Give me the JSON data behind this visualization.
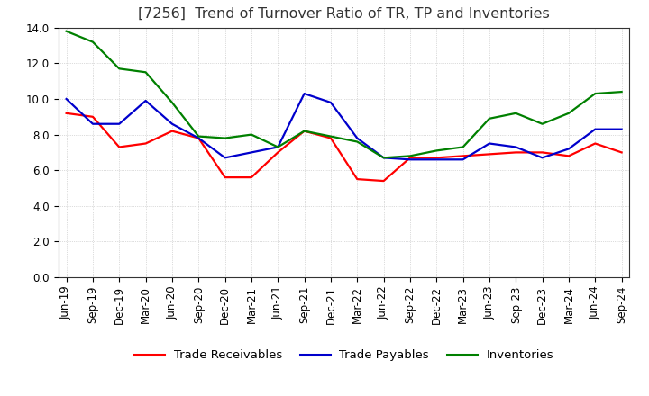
{
  "title": "[7256]  Trend of Turnover Ratio of TR, TP and Inventories",
  "ylim": [
    0.0,
    14.0
  ],
  "yticks": [
    0.0,
    2.0,
    4.0,
    6.0,
    8.0,
    10.0,
    12.0,
    14.0
  ],
  "x_labels": [
    "Jun-19",
    "Sep-19",
    "Dec-19",
    "Mar-20",
    "Jun-20",
    "Sep-20",
    "Dec-20",
    "Mar-21",
    "Jun-21",
    "Sep-21",
    "Dec-21",
    "Mar-22",
    "Jun-22",
    "Sep-22",
    "Dec-22",
    "Mar-23",
    "Jun-23",
    "Sep-23",
    "Dec-23",
    "Mar-24",
    "Jun-24",
    "Sep-24"
  ],
  "trade_receivables": [
    9.2,
    9.0,
    7.3,
    7.5,
    8.2,
    7.8,
    5.6,
    5.6,
    7.0,
    8.2,
    7.8,
    5.5,
    5.4,
    6.7,
    6.7,
    6.8,
    6.9,
    7.0,
    7.0,
    6.8,
    7.5,
    7.0
  ],
  "trade_payables": [
    10.0,
    8.6,
    8.6,
    9.9,
    8.6,
    7.8,
    6.7,
    7.0,
    7.3,
    10.3,
    9.8,
    7.8,
    6.7,
    6.6,
    6.6,
    6.6,
    7.5,
    7.3,
    6.7,
    7.2,
    8.3,
    8.3
  ],
  "inventories": [
    13.8,
    13.2,
    11.7,
    11.5,
    9.8,
    7.9,
    7.8,
    8.0,
    7.3,
    8.2,
    7.9,
    7.6,
    6.7,
    6.8,
    7.1,
    7.3,
    8.9,
    9.2,
    8.6,
    9.2,
    10.3,
    10.4
  ],
  "color_tr": "#ff0000",
  "color_tp": "#0000cc",
  "color_inv": "#008000",
  "line_width": 1.6,
  "legend_labels": [
    "Trade Receivables",
    "Trade Payables",
    "Inventories"
  ],
  "background_color": "#ffffff",
  "title_color": "#333333",
  "title_fontsize": 11.5,
  "tick_fontsize": 8.5,
  "legend_fontsize": 9.5
}
